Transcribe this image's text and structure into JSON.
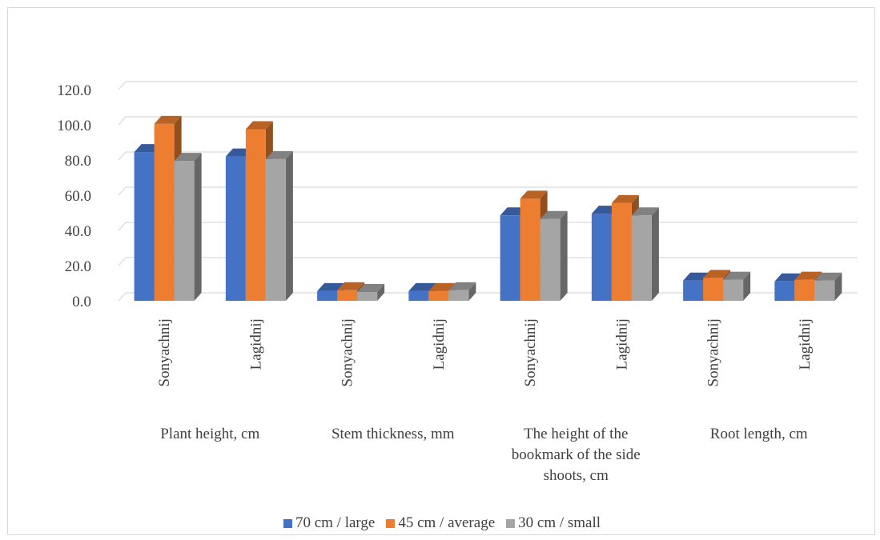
{
  "chart_data": {
    "type": "bar",
    "ylim": [
      0,
      120
    ],
    "yticks": [
      "0.0",
      "20.0",
      "40.0",
      "60.0",
      "80.0",
      "100.0",
      "120.0"
    ],
    "grid": true,
    "legend_position": "bottom",
    "groups": [
      {
        "label": "Plant height, cm",
        "categories": [
          "Sonyachnij",
          "Lagidnij"
        ]
      },
      {
        "label": "Stem thickness, mm",
        "categories": [
          "Sonyachnij",
          "Lagidnij"
        ]
      },
      {
        "label": "The height of the bookmark of the side shoots, cm",
        "categories": [
          "Sonyachnij",
          "Lagidnij"
        ]
      },
      {
        "label": "Root length, cm",
        "categories": [
          "Sonyachnij",
          "Lagidnij"
        ]
      }
    ],
    "categories": [
      "Sonyachnij",
      "Lagidnij",
      "Sonyachnij",
      "Lagidnij",
      "Sonyachnij",
      "Lagidnij",
      "Sonyachnij",
      "Lagidnij"
    ],
    "series": [
      {
        "name": "70 cm / large",
        "color": "#4472c4",
        "values": [
          84.5,
          82.0,
          5.5,
          5.5,
          48.5,
          49.5,
          11.5,
          11.0
        ]
      },
      {
        "name": "45 cm / average",
        "color": "#ed7d31",
        "values": [
          100.5,
          97.5,
          6.0,
          5.5,
          58.0,
          55.5,
          13.0,
          12.0
        ]
      },
      {
        "name": "30 cm / small",
        "color": "#a5a5a5",
        "values": [
          79.5,
          80.5,
          5.0,
          6.0,
          46.5,
          48.5,
          12.0,
          11.5
        ]
      }
    ]
  }
}
